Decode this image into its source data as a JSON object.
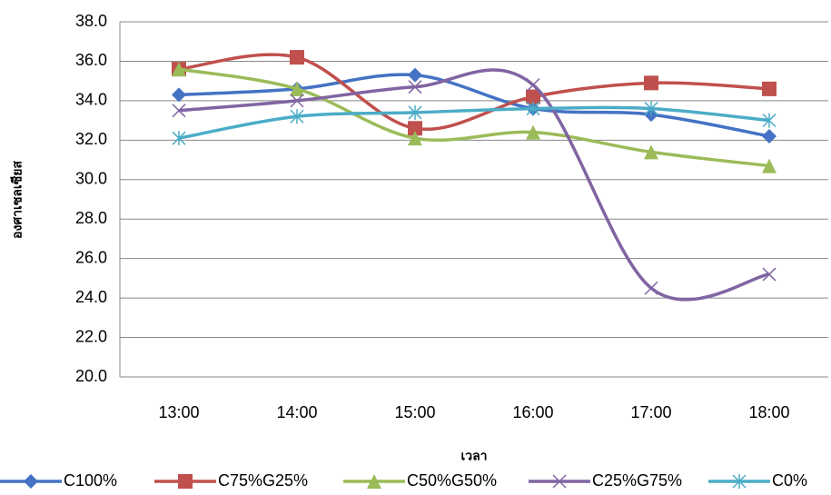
{
  "chart_data": {
    "type": "line",
    "x_label": "เวลา",
    "y_label": "องศาเซลเซียส",
    "categories": [
      "13:00",
      "14:00",
      "15:00",
      "16:00",
      "17:00",
      "18:00"
    ],
    "series": [
      {
        "name": "C100%",
        "color": "#4472c4",
        "marker": "diamond",
        "values": [
          34.3,
          34.6,
          35.3,
          33.6,
          33.3,
          32.2
        ]
      },
      {
        "name": "C75%G25%",
        "color": "#c0504d",
        "marker": "square",
        "values": [
          35.6,
          36.2,
          32.6,
          34.2,
          34.9,
          34.6
        ]
      },
      {
        "name": "C50%G50%",
        "color": "#9bbb59",
        "marker": "triangle",
        "values": [
          35.6,
          34.6,
          32.1,
          32.4,
          31.4,
          30.7
        ]
      },
      {
        "name": "C25%G75%",
        "color": "#8064a2",
        "marker": "x",
        "values": [
          33.5,
          34.0,
          34.7,
          34.8,
          24.5,
          25.2
        ]
      },
      {
        "name": "C0%",
        "color": "#4bacc6",
        "marker": "star",
        "values": [
          32.1,
          33.2,
          33.4,
          33.6,
          33.6,
          33.0
        ]
      }
    ],
    "ylim": [
      20,
      38
    ],
    "yticks": [
      {
        "value": 20,
        "label": "20.0"
      },
      {
        "value": 22,
        "label": "22.0"
      },
      {
        "value": 24,
        "label": "24.0"
      },
      {
        "value": 26,
        "label": "26.0"
      },
      {
        "value": 28,
        "label": "28.0"
      },
      {
        "value": 30,
        "label": "30.0"
      },
      {
        "value": 32,
        "label": "32.0"
      },
      {
        "value": 34,
        "label": "34.0"
      },
      {
        "value": 36,
        "label": "36.0"
      },
      {
        "value": 38,
        "label": "38.0"
      }
    ],
    "grid": true,
    "legend": "bottom"
  }
}
